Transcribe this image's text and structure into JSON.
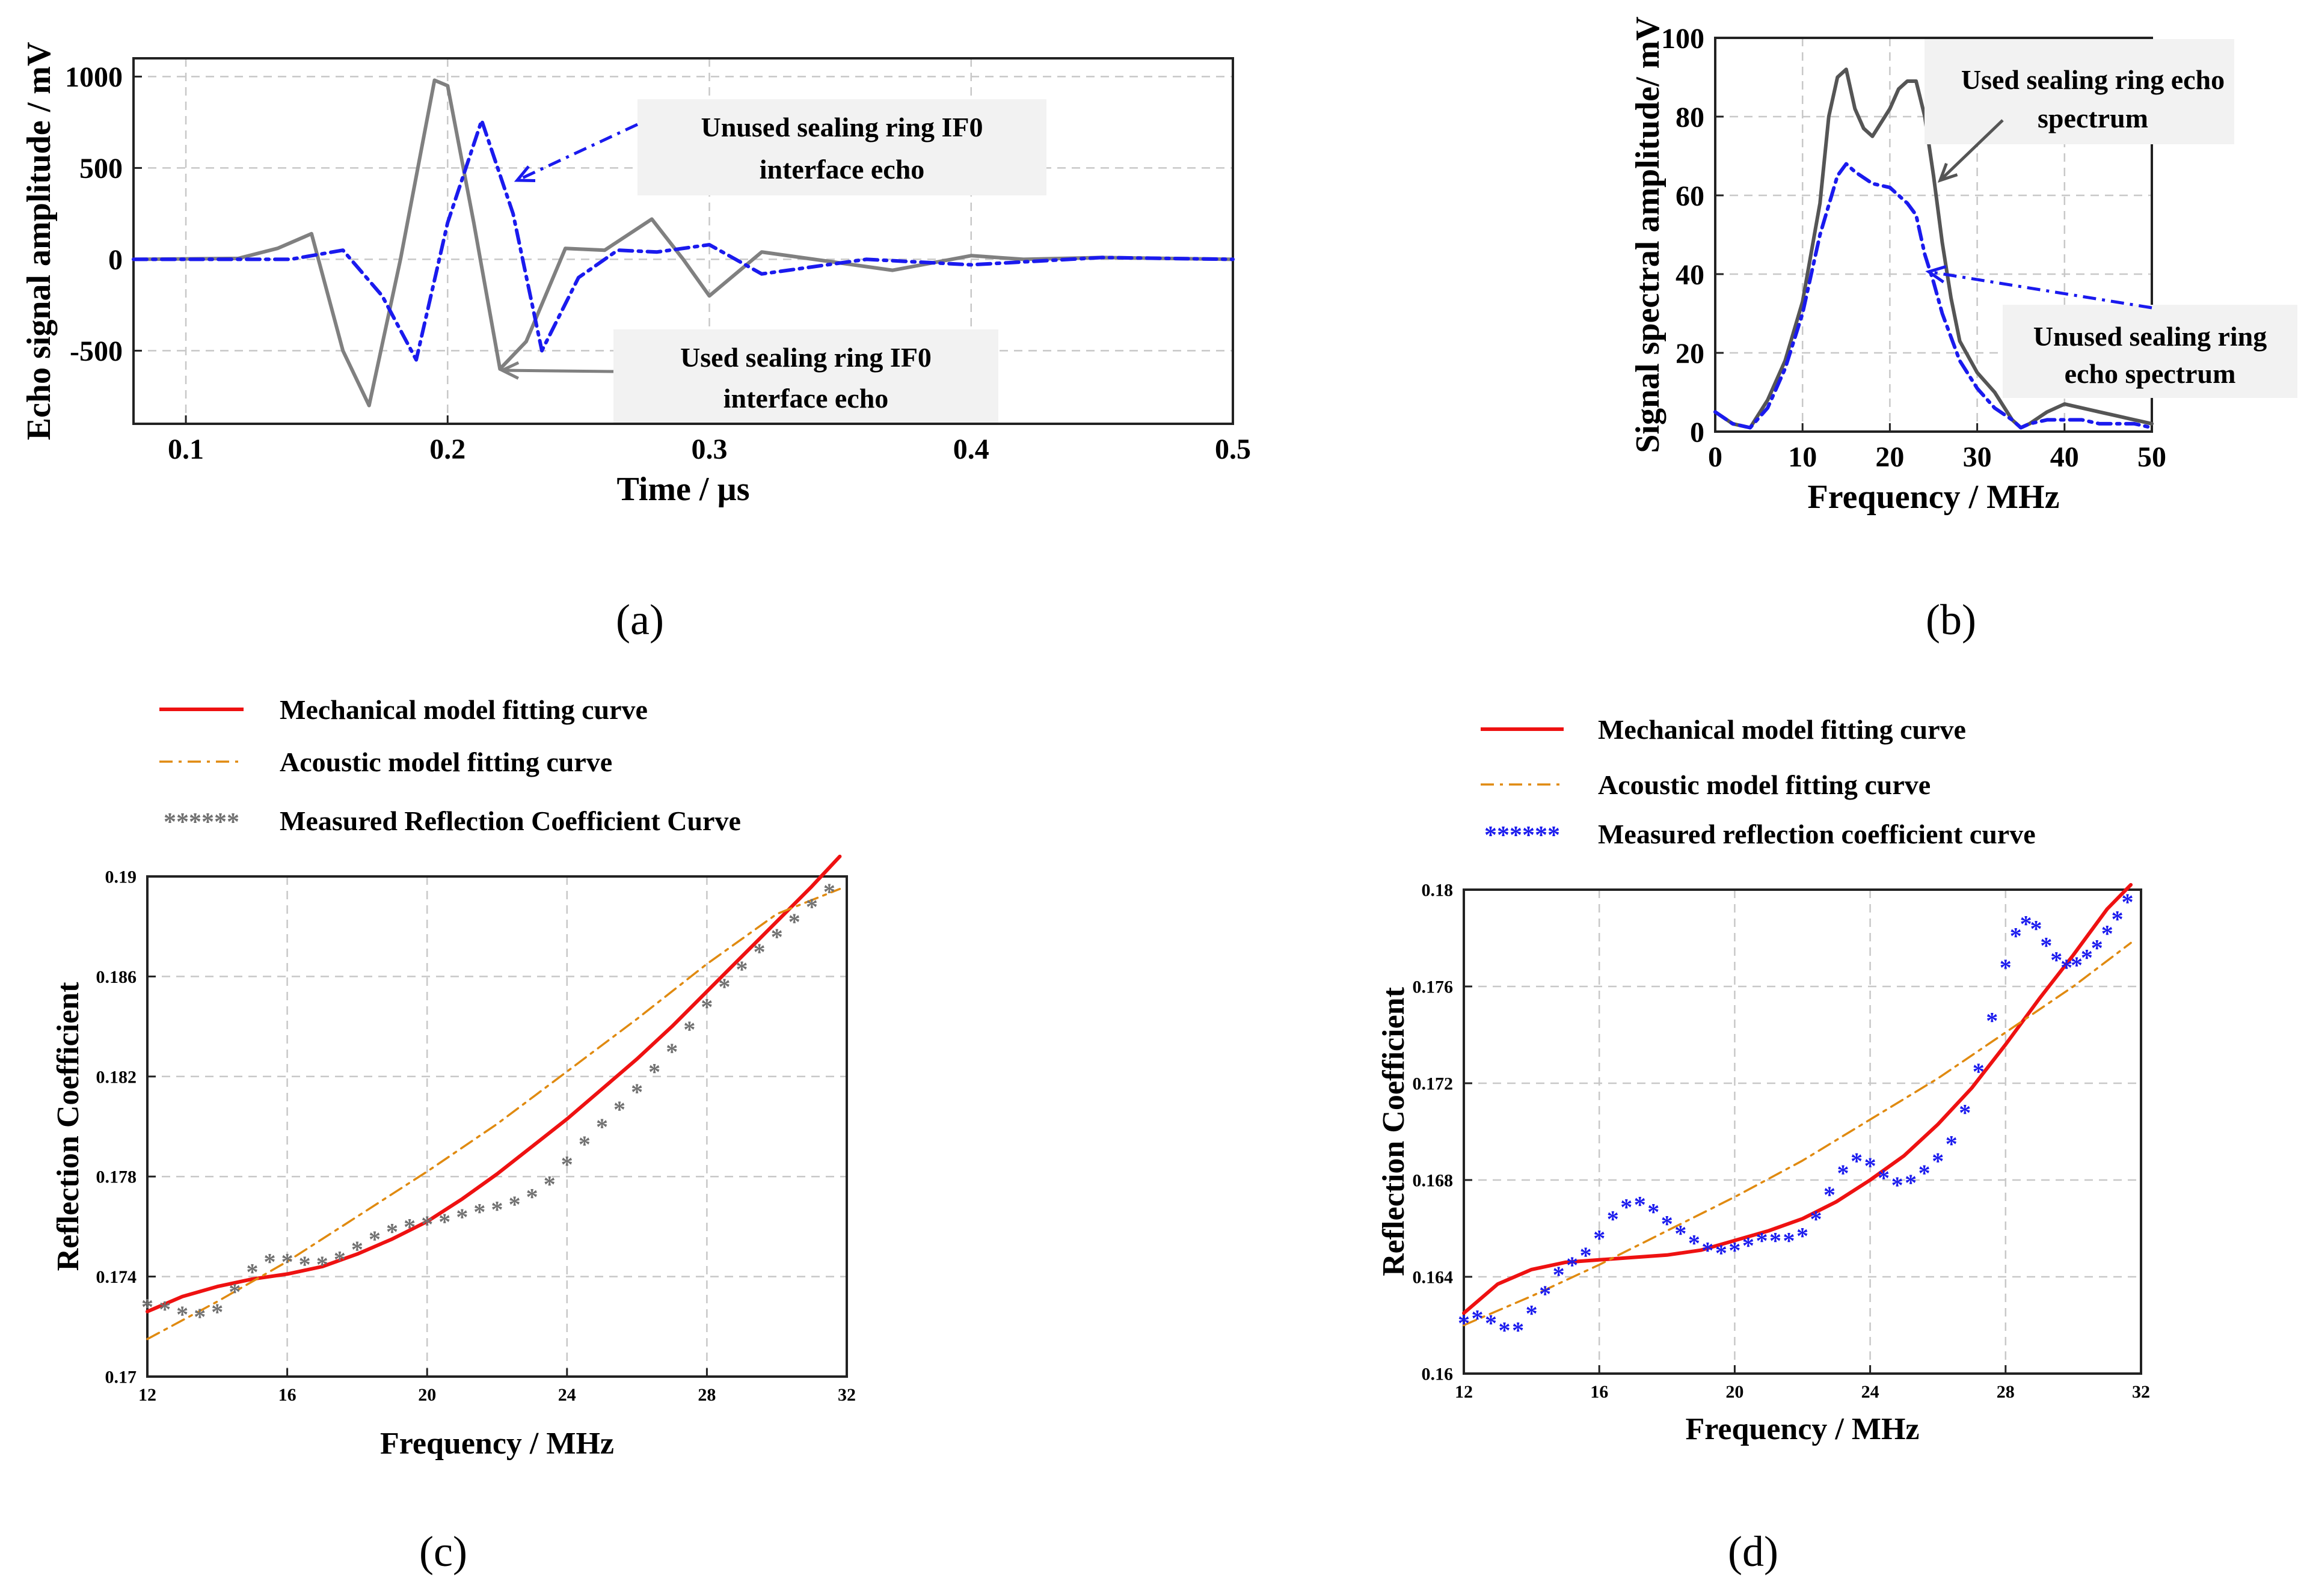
{
  "figure": {
    "panel_labels": [
      "(a)",
      "(b)",
      "(c)",
      "(d)"
    ]
  },
  "chart_data": [
    {
      "id": "a",
      "type": "line",
      "title": "",
      "xlabel": "Time / µs",
      "ylabel": "Echo signal amplitude / mV",
      "xlim": [
        0.08,
        0.5
      ],
      "ylim": [
        -900,
        1100
      ],
      "xticks": [
        0.1,
        0.2,
        0.3,
        0.4,
        0.5
      ],
      "xtick_labels": [
        "0.1",
        "0.2",
        "0.3",
        "0.4",
        "0.5"
      ],
      "yticks": [
        -500,
        0,
        500,
        1000
      ],
      "ytick_labels": [
        "-500",
        "0",
        "500",
        "1000"
      ],
      "grid": true,
      "series": [
        {
          "name": "Used sealing ring IF0 interface echo",
          "color": "#808080",
          "style": "solid",
          "x": [
            0.08,
            0.12,
            0.135,
            0.148,
            0.16,
            0.17,
            0.182,
            0.195,
            0.2,
            0.21,
            0.22,
            0.23,
            0.245,
            0.26,
            0.278,
            0.29,
            0.3,
            0.32,
            0.34,
            0.37,
            0.4,
            0.42,
            0.45,
            0.5
          ],
          "y": [
            0,
            5,
            60,
            140,
            -500,
            -800,
            0,
            980,
            950,
            200,
            -600,
            -450,
            60,
            50,
            220,
            0,
            -200,
            40,
            0,
            -60,
            20,
            0,
            10,
            0
          ]
        },
        {
          "name": "Unused sealing ring IF0 interface echo",
          "color": "#1a1aee",
          "style": "dash-dot",
          "x": [
            0.08,
            0.14,
            0.16,
            0.175,
            0.188,
            0.2,
            0.213,
            0.225,
            0.236,
            0.25,
            0.265,
            0.28,
            0.3,
            0.32,
            0.36,
            0.4,
            0.45,
            0.5
          ],
          "y": [
            0,
            0,
            50,
            -200,
            -550,
            200,
            760,
            250,
            -500,
            -100,
            50,
            40,
            80,
            -80,
            0,
            -30,
            10,
            0
          ]
        }
      ],
      "annotations": [
        {
          "text_lines": [
            "Unused sealing ring IF0",
            "interface echo"
          ],
          "color": "#1a1aee",
          "arrow_style": "dash-dot"
        },
        {
          "text_lines": [
            "Used sealing ring IF0",
            "interface echo"
          ],
          "color": "#808080",
          "arrow_style": "solid"
        }
      ]
    },
    {
      "id": "b",
      "type": "line",
      "title": "",
      "xlabel": "Frequency / MHz",
      "ylabel": "Signal spectral amplitude/ mV",
      "xlim": [
        0,
        50
      ],
      "ylim": [
        0,
        100
      ],
      "xticks": [
        0,
        10,
        20,
        30,
        40,
        50
      ],
      "xtick_labels": [
        "0",
        "10",
        "20",
        "30",
        "40",
        "50"
      ],
      "yticks": [
        0,
        20,
        40,
        60,
        80,
        100
      ],
      "ytick_labels": [
        "0",
        "20",
        "40",
        "60",
        "80",
        "100"
      ],
      "grid": true,
      "series": [
        {
          "name": "Used sealing ring echo spectrum",
          "color": "#555555",
          "style": "solid",
          "x": [
            0,
            2,
            4,
            6,
            8,
            10,
            12,
            13,
            14,
            15,
            16,
            17,
            18,
            20,
            21,
            22,
            23,
            24,
            25,
            26,
            27,
            28,
            30,
            32,
            34,
            35,
            36,
            38,
            40,
            42,
            44,
            46,
            48,
            50
          ],
          "y": [
            5,
            2,
            1,
            8,
            18,
            33,
            58,
            80,
            90,
            92,
            82,
            77,
            75,
            82,
            87,
            89,
            89,
            80,
            65,
            48,
            34,
            23,
            15,
            10,
            3,
            1,
            2,
            5,
            7,
            6,
            5,
            4,
            3,
            2
          ]
        },
        {
          "name": "Unused sealing ring echo spectrum",
          "color": "#1a1aee",
          "style": "dash-dot",
          "x": [
            0,
            2,
            4,
            6,
            8,
            10,
            12,
            14,
            15,
            16,
            18,
            20,
            22,
            23,
            24,
            25,
            26,
            28,
            30,
            32,
            34,
            35,
            36,
            38,
            40,
            42,
            44,
            46,
            48,
            50
          ],
          "y": [
            5,
            2,
            1,
            6,
            16,
            30,
            50,
            65,
            68,
            66,
            63,
            62,
            58,
            55,
            45,
            38,
            30,
            18,
            11,
            6,
            3,
            1,
            2,
            3,
            3,
            3,
            2,
            2,
            2,
            1
          ]
        }
      ],
      "annotations": [
        {
          "text_lines": [
            "Used sealing ring echo",
            "spectrum"
          ],
          "color": "#555555",
          "arrow_style": "solid"
        },
        {
          "text_lines": [
            "Unused sealing ring",
            "echo spectrum"
          ],
          "color": "#1a1aee",
          "arrow_style": "dash-dot"
        }
      ]
    },
    {
      "id": "c",
      "type": "line",
      "title": "",
      "xlabel": "Frequency / MHz",
      "ylabel": "Reflection Coefficient",
      "xlim": [
        12,
        32
      ],
      "ylim": [
        0.17,
        0.19
      ],
      "xticks": [
        12,
        16,
        20,
        24,
        28,
        32
      ],
      "xtick_labels": [
        "12",
        "16",
        "20",
        "24",
        "28",
        "32"
      ],
      "yticks": [
        0.17,
        0.174,
        0.178,
        0.182,
        0.186,
        0.19
      ],
      "ytick_labels": [
        "0.17",
        "0.174",
        "0.178",
        "0.182",
        "0.186",
        "0.19"
      ],
      "grid": true,
      "legend": [
        {
          "label": "Mechanical model fitting curve",
          "color": "#ee1111",
          "style": "solid",
          "marker_text": ""
        },
        {
          "label": "Acoustic model fitting curve",
          "color": "#e08a10",
          "style": "dash-dot",
          "marker_text": ""
        },
        {
          "label": "Measured Reflection Coefficient Curve",
          "color": "#707070",
          "style": "markers",
          "marker_text": "******"
        }
      ],
      "series": [
        {
          "name": "Mechanical model fitting curve",
          "color": "#ee1111",
          "style": "solid",
          "x": [
            12,
            13,
            14,
            15,
            16,
            17,
            18,
            19,
            20,
            21,
            22,
            23,
            24,
            25,
            26,
            27,
            28,
            29,
            30,
            31,
            31.8
          ],
          "y": [
            0.1726,
            0.1732,
            0.1736,
            0.1739,
            0.1741,
            0.1744,
            0.1749,
            0.1755,
            0.1762,
            0.1771,
            0.1781,
            0.1792,
            0.1803,
            0.1815,
            0.1827,
            0.184,
            0.1854,
            0.1868,
            0.1882,
            0.1896,
            0.1908
          ]
        },
        {
          "name": "Acoustic model fitting curve",
          "color": "#e08a10",
          "style": "dash-dot",
          "x": [
            12,
            14,
            16,
            18,
            20,
            22,
            24,
            26,
            28,
            30,
            31.8
          ],
          "y": [
            0.1715,
            0.173,
            0.1746,
            0.1764,
            0.1782,
            0.1801,
            0.1822,
            0.1843,
            0.1865,
            0.1885,
            0.1895
          ]
        },
        {
          "name": "Measured Reflection Coefficient Curve",
          "color": "#707070",
          "style": "markers",
          "x": [
            12,
            12.5,
            13,
            13.5,
            14,
            14.5,
            15,
            15.5,
            16,
            16.5,
            17,
            17.5,
            18,
            18.5,
            19,
            19.5,
            20,
            20.5,
            21,
            21.5,
            22,
            22.5,
            23,
            23.5,
            24,
            24.5,
            25,
            25.5,
            26,
            26.5,
            27,
            27.5,
            28,
            28.5,
            29,
            29.5,
            30,
            30.5,
            31,
            31.5
          ],
          "y": [
            0.1728,
            0.1727,
            0.1725,
            0.1724,
            0.1726,
            0.1734,
            0.1742,
            0.1746,
            0.1746,
            0.1745,
            0.1745,
            0.1747,
            0.1751,
            0.1755,
            0.1758,
            0.176,
            0.1761,
            0.1762,
            0.1764,
            0.1766,
            0.1767,
            0.1769,
            0.1772,
            0.1777,
            0.1785,
            0.1793,
            0.18,
            0.1807,
            0.1814,
            0.1822,
            0.183,
            0.1839,
            0.1848,
            0.1856,
            0.1863,
            0.187,
            0.1876,
            0.1882,
            0.1888,
            0.1894
          ]
        }
      ]
    },
    {
      "id": "d",
      "type": "line",
      "title": "",
      "xlabel": "Frequency / MHz",
      "ylabel": "Reflection Coefficient",
      "xlim": [
        12,
        32
      ],
      "ylim": [
        0.16,
        0.18
      ],
      "xticks": [
        12,
        16,
        20,
        24,
        28,
        32
      ],
      "xtick_labels": [
        "12",
        "16",
        "20",
        "24",
        "28",
        "32"
      ],
      "yticks": [
        0.16,
        0.164,
        0.168,
        0.172,
        0.176,
        0.18
      ],
      "ytick_labels": [
        "0.16",
        "0.164",
        "0.168",
        "0.172",
        "0.176",
        "0.18"
      ],
      "grid": true,
      "legend": [
        {
          "label": "Mechanical model fitting curve",
          "color": "#ee1111",
          "style": "solid",
          "marker_text": ""
        },
        {
          "label": "Acoustic model fitting curve",
          "color": "#e08a10",
          "style": "dash-dot",
          "marker_text": ""
        },
        {
          "label": "Measured reflection coefficient curve",
          "color": "#1a1aee",
          "style": "markers",
          "marker_text": "******"
        }
      ],
      "series": [
        {
          "name": "Mechanical model fitting curve",
          "color": "#ee1111",
          "style": "solid",
          "x": [
            12,
            13,
            14,
            15,
            16,
            17,
            18,
            19,
            20,
            21,
            22,
            23,
            24,
            25,
            26,
            27,
            28,
            29,
            30,
            31,
            31.7
          ],
          "y": [
            0.1625,
            0.1637,
            0.1643,
            0.1646,
            0.1647,
            0.1648,
            0.1649,
            0.1651,
            0.1655,
            0.1659,
            0.1664,
            0.1671,
            0.168,
            0.169,
            0.1703,
            0.1718,
            0.1736,
            0.1755,
            0.1773,
            0.1792,
            0.1802
          ]
        },
        {
          "name": "Acoustic model fitting curve",
          "color": "#e08a10",
          "style": "dash-dot",
          "x": [
            12,
            14,
            16,
            18,
            20,
            22,
            24,
            26,
            28,
            30,
            31.7
          ],
          "y": [
            0.162,
            0.1632,
            0.1645,
            0.1659,
            0.1673,
            0.1688,
            0.1705,
            0.1722,
            0.1741,
            0.176,
            0.1778
          ]
        },
        {
          "name": "Measured reflection coefficient curve",
          "color": "#1a1aee",
          "style": "markers",
          "x": [
            12,
            12.4,
            12.8,
            13.2,
            13.6,
            14,
            14.4,
            14.8,
            15.2,
            15.6,
            16,
            16.4,
            16.8,
            17.2,
            17.6,
            18,
            18.4,
            18.8,
            19.2,
            19.6,
            20,
            20.4,
            20.8,
            21.2,
            21.6,
            22,
            22.4,
            22.8,
            23.2,
            23.6,
            24,
            24.4,
            24.8,
            25.2,
            25.6,
            26,
            26.4,
            26.8,
            27.2,
            27.6,
            28,
            28.3,
            28.6,
            28.9,
            29.2,
            29.5,
            29.8,
            30.1,
            30.4,
            30.7,
            31,
            31.3,
            31.6
          ],
          "y": [
            0.1621,
            0.1623,
            0.1621,
            0.1618,
            0.1618,
            0.1625,
            0.1633,
            0.1641,
            0.1645,
            0.1649,
            0.1656,
            0.1664,
            0.1669,
            0.167,
            0.1667,
            0.1662,
            0.1658,
            0.1654,
            0.1651,
            0.165,
            0.1651,
            0.1653,
            0.1655,
            0.1655,
            0.1655,
            0.1657,
            0.1664,
            0.1674,
            0.1683,
            0.1688,
            0.1686,
            0.1681,
            0.1678,
            0.1679,
            0.1683,
            0.1688,
            0.1695,
            0.1708,
            0.1725,
            0.1746,
            0.1768,
            0.1781,
            0.1786,
            0.1784,
            0.1777,
            0.1771,
            0.1768,
            0.1769,
            0.1772,
            0.1776,
            0.1782,
            0.1788,
            0.1795
          ]
        }
      ]
    }
  ]
}
